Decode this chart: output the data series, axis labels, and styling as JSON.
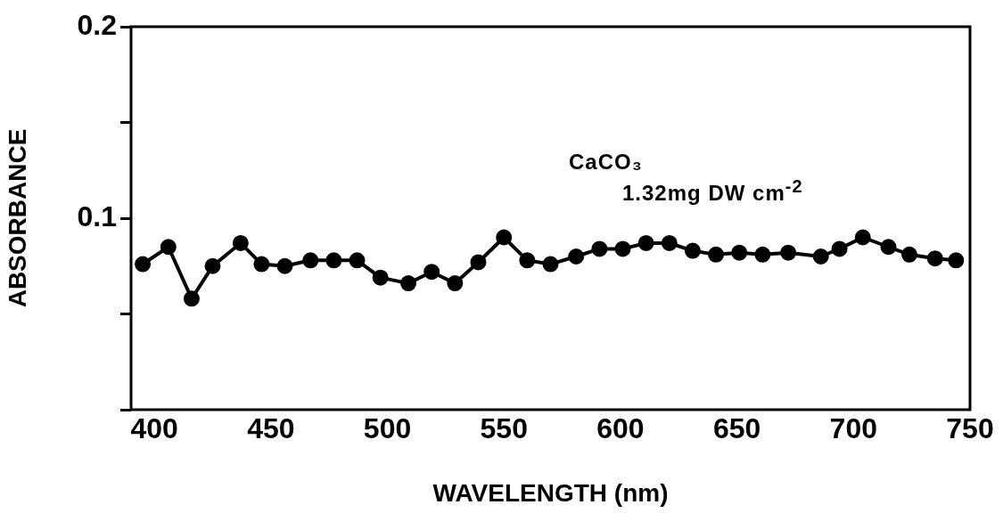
{
  "chart_data": {
    "type": "line",
    "xlabel": "WAVELENGTH (nm)",
    "ylabel": "ABSORBANCE",
    "annotations": [
      "CaCO₃",
      "1.32mg DW cm$^{-2}$"
    ],
    "x": [
      395,
      406,
      416,
      425,
      437,
      446,
      456,
      467,
      477,
      487,
      497,
      509,
      519,
      529,
      539,
      550,
      560,
      570,
      581,
      591,
      601,
      611,
      621,
      631,
      641,
      651,
      661,
      672,
      686,
      694,
      704,
      715,
      724,
      735,
      744
    ],
    "series": [
      {
        "color": "#000000",
        "values": [
          0.076,
          0.085,
          0.058,
          0.075,
          0.087,
          0.076,
          0.075,
          0.078,
          0.078,
          0.078,
          0.069,
          0.066,
          0.072,
          0.066,
          0.077,
          0.09,
          0.078,
          0.076,
          0.08,
          0.084,
          0.084,
          0.087,
          0.087,
          0.083,
          0.081,
          0.082,
          0.081,
          0.082,
          0.08,
          0.084,
          0.09,
          0.085,
          0.081,
          0.079,
          0.078
        ]
      }
    ],
    "xlim": [
      390,
      750
    ],
    "xticks": [
      400,
      450,
      500,
      550,
      600,
      650,
      700,
      750
    ],
    "ylim": [
      0,
      0.2
    ],
    "yticks": [
      {
        "value": 0,
        "label": null
      },
      {
        "value": 0.05,
        "label": null
      },
      0.1,
      {
        "value": 0.15,
        "label": null
      },
      0.2
    ],
    "marker": "circle",
    "line_style": "solid",
    "grid": false,
    "legend": false
  }
}
